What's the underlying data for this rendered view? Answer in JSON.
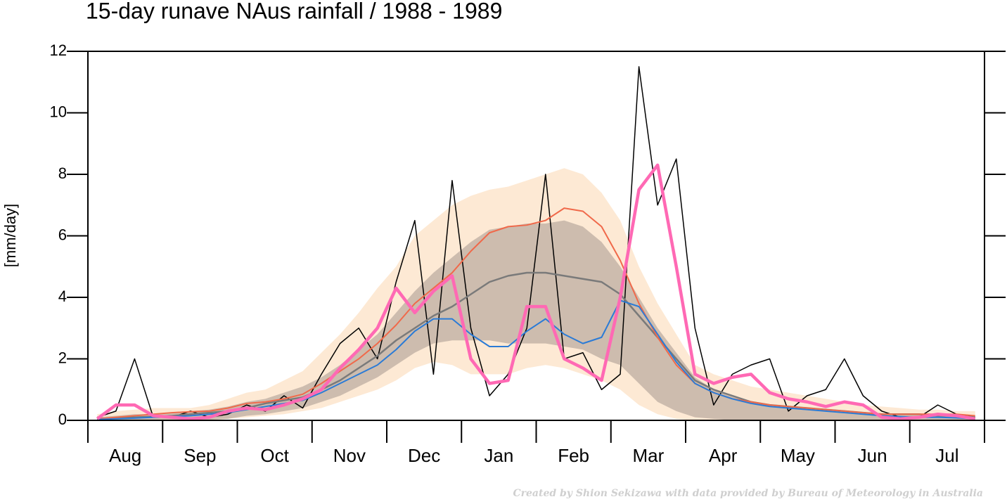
{
  "chart_data": {
    "type": "line",
    "title": "15-day runave NAus rainfall  /  1988 - 1989",
    "y_label": "[mm/day]",
    "footer": "Created by Shion Sekizawa with data provided by Bureau of Meteorology in Australia",
    "categories": [
      null,
      "Aug",
      null,
      null,
      null,
      "Sep",
      null,
      null,
      null,
      "Oct",
      null,
      null,
      null,
      "Nov",
      null,
      null,
      null,
      "Dec",
      null,
      null,
      null,
      "Jan",
      null,
      null,
      null,
      "Feb",
      null,
      null,
      null,
      "Mar",
      null,
      null,
      null,
      "Apr",
      null,
      null,
      null,
      "May",
      null,
      null,
      null,
      "Jun",
      null,
      null,
      null,
      "Jul",
      null,
      null
    ],
    "ylim": [
      0,
      12
    ],
    "yticks": [
      0,
      2,
      4,
      6,
      8,
      10,
      12
    ],
    "bands": [
      {
        "color": "#fde9d4",
        "lower": [
          0,
          0,
          0,
          0,
          0,
          0,
          0,
          0.05,
          0.1,
          0.15,
          0.2,
          0.3,
          0.4,
          0.6,
          0.8,
          1.0,
          1.3,
          1.7,
          1.9,
          1.8,
          1.5,
          1.5,
          1.5,
          1.7,
          1.8,
          1.7,
          1.5,
          1.3,
          1.0,
          0.5,
          0.2,
          0.05,
          0,
          0,
          0,
          0,
          0,
          0,
          0,
          0,
          0,
          0,
          0,
          0,
          0,
          0,
          0,
          0
        ],
        "upper": [
          0.2,
          0.3,
          0.35,
          0.4,
          0.4,
          0.4,
          0.5,
          0.7,
          0.9,
          1.0,
          1.3,
          1.6,
          2.2,
          2.8,
          3.5,
          4.3,
          5.0,
          6.0,
          6.5,
          7.0,
          7.3,
          7.5,
          7.6,
          7.8,
          8.0,
          8.2,
          8.0,
          7.4,
          6.5,
          5.0,
          3.8,
          2.8,
          1.8,
          1.5,
          1.3,
          1.1,
          1.0,
          0.9,
          0.8,
          0.7,
          0.6,
          0.5,
          0.45,
          0.4,
          0.35,
          0.35,
          0.3,
          0.3
        ]
      },
      {
        "color": "#cdbcae",
        "lower": [
          0,
          0,
          0,
          0,
          0,
          0,
          0.02,
          0.05,
          0.15,
          0.2,
          0.3,
          0.4,
          0.6,
          0.8,
          1.1,
          1.4,
          1.8,
          2.2,
          2.5,
          2.6,
          2.6,
          2.6,
          2.5,
          2.5,
          2.5,
          2.4,
          2.3,
          2.0,
          1.8,
          1.2,
          0.6,
          0.3,
          0.1,
          0.05,
          0,
          0,
          0,
          0,
          0,
          0,
          0,
          0,
          0,
          0,
          0,
          0,
          0,
          0
        ],
        "upper": [
          0.1,
          0.15,
          0.2,
          0.2,
          0.25,
          0.3,
          0.35,
          0.45,
          0.6,
          0.7,
          0.9,
          1.1,
          1.4,
          1.8,
          2.3,
          2.8,
          3.5,
          4.2,
          4.8,
          5.3,
          5.8,
          6.2,
          6.3,
          6.4,
          6.4,
          6.5,
          6.3,
          5.8,
          5.0,
          4.0,
          3.0,
          2.2,
          1.4,
          1.0,
          0.8,
          0.6,
          0.5,
          0.45,
          0.4,
          0.35,
          0.3,
          0.25,
          0.2,
          0.2,
          0.2,
          0.2,
          0.2,
          0.15
        ]
      }
    ],
    "series": [
      {
        "color": "#000000",
        "values": [
          0.1,
          0.3,
          2.0,
          0.1,
          0.1,
          0.3,
          0.1,
          0.2,
          0.5,
          0.3,
          0.8,
          0.4,
          1.5,
          2.5,
          3.0,
          2.0,
          4.5,
          6.5,
          1.5,
          7.8,
          3.0,
          0.8,
          1.5,
          3.0,
          8.0,
          2.0,
          2.2,
          1.0,
          1.5,
          11.5,
          7.0,
          8.5,
          3.0,
          0.5,
          1.5,
          1.8,
          2.0,
          0.3,
          0.8,
          1.0,
          2.0,
          0.8,
          0.3,
          0.1,
          0.1,
          0.5,
          0.2,
          0.1
        ]
      },
      {
        "color": "#7a7a7a",
        "values": [
          0.05,
          0.08,
          0.1,
          0.12,
          0.15,
          0.2,
          0.25,
          0.3,
          0.4,
          0.55,
          0.65,
          0.75,
          1.0,
          1.3,
          1.7,
          2.1,
          2.6,
          3.0,
          3.4,
          3.7,
          4.1,
          4.5,
          4.7,
          4.8,
          4.8,
          4.7,
          4.6,
          4.5,
          4.1,
          3.4,
          2.7,
          2.0,
          1.3,
          1.0,
          0.8,
          0.6,
          0.5,
          0.45,
          0.4,
          0.35,
          0.3,
          0.25,
          0.2,
          0.2,
          0.2,
          0.15,
          0.15,
          0.1
        ]
      },
      {
        "color": "#f0694a",
        "values": [
          0.05,
          0.1,
          0.15,
          0.2,
          0.25,
          0.28,
          0.3,
          0.4,
          0.55,
          0.6,
          0.7,
          0.85,
          1.2,
          1.6,
          2.0,
          2.5,
          3.1,
          3.8,
          4.3,
          4.8,
          5.5,
          6.1,
          6.3,
          6.35,
          6.5,
          6.9,
          6.8,
          6.3,
          5.2,
          3.8,
          2.7,
          1.8,
          1.2,
          0.9,
          0.7,
          0.6,
          0.5,
          0.45,
          0.4,
          0.35,
          0.3,
          0.25,
          0.2,
          0.2,
          0.2,
          0.2,
          0.2,
          0.15
        ]
      },
      {
        "color": "#2b7bd6",
        "values": [
          0.03,
          0.05,
          0.07,
          0.1,
          0.12,
          0.15,
          0.2,
          0.25,
          0.35,
          0.45,
          0.55,
          0.65,
          0.9,
          1.2,
          1.5,
          1.8,
          2.3,
          2.9,
          3.3,
          3.3,
          2.8,
          2.4,
          2.4,
          2.9,
          3.3,
          2.8,
          2.5,
          2.7,
          3.9,
          3.7,
          2.8,
          1.9,
          1.2,
          0.9,
          0.7,
          0.55,
          0.45,
          0.4,
          0.35,
          0.3,
          0.25,
          0.2,
          0.15,
          0.12,
          0.1,
          0.1,
          0.08,
          0.05
        ]
      },
      {
        "color": "#ff69b4",
        "values": [
          0.05,
          0.5,
          0.5,
          0.15,
          0.1,
          0.05,
          0.1,
          0.3,
          0.4,
          0.35,
          0.5,
          0.7,
          1.0,
          1.7,
          2.3,
          3.0,
          4.3,
          3.5,
          4.2,
          4.7,
          2.0,
          1.2,
          1.3,
          3.7,
          3.7,
          2.0,
          1.7,
          1.3,
          4.0,
          7.5,
          8.3,
          5.0,
          1.5,
          1.2,
          1.4,
          1.5,
          0.9,
          0.7,
          0.6,
          0.45,
          0.6,
          0.5,
          0.1,
          0.05,
          0.1,
          0.2,
          0.15,
          0.05
        ]
      }
    ]
  }
}
